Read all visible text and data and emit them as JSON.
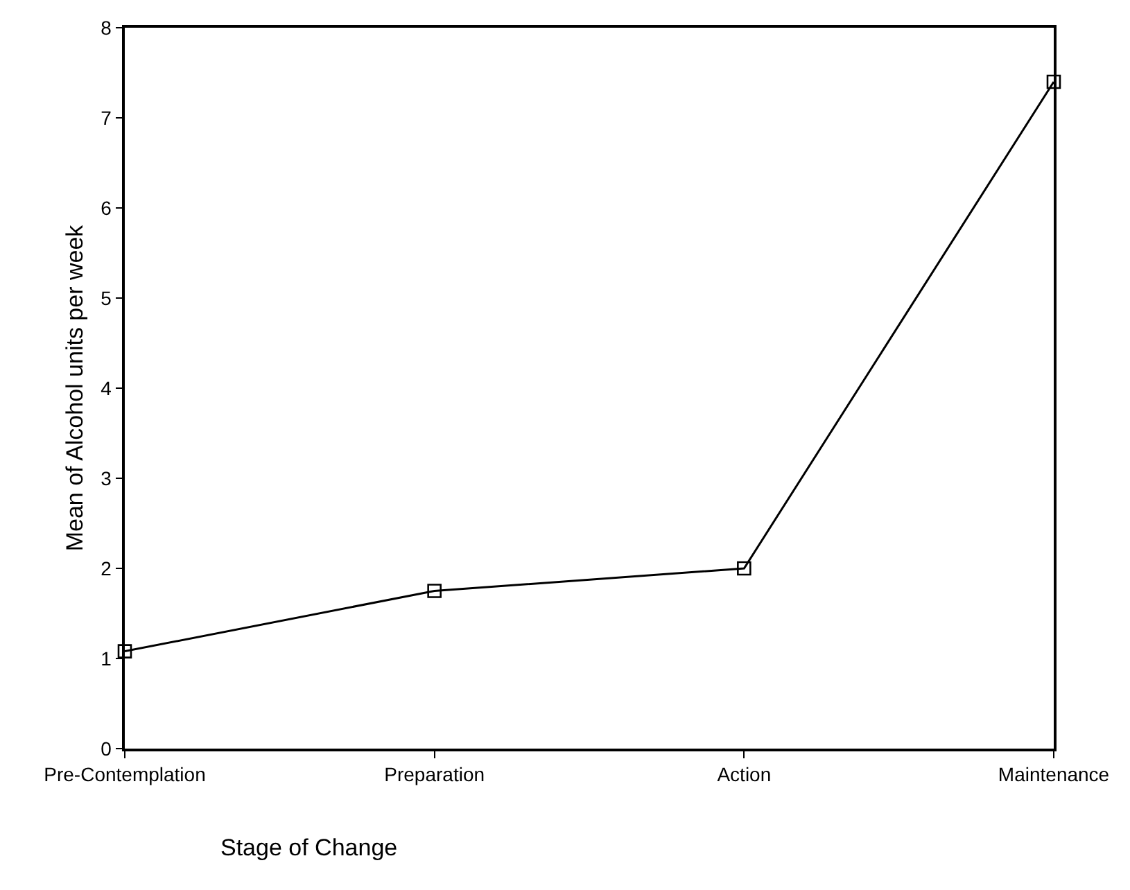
{
  "chart_data": {
    "type": "line",
    "xlabel": "Stage of Change",
    "ylabel": "Mean of Alcohol units per week",
    "categories": [
      "Pre-Contemplation",
      "Preparation",
      "Action",
      "Maintenance"
    ],
    "series": [
      {
        "color": "#000000",
        "values": [
          1.08,
          1.75,
          2.0,
          7.4
        ]
      }
    ],
    "ylim": [
      0,
      8
    ],
    "yticks": [
      0,
      1,
      2,
      3,
      4,
      5,
      6,
      7,
      8
    ],
    "legend": false,
    "marker": "square",
    "line_style": "solid"
  }
}
